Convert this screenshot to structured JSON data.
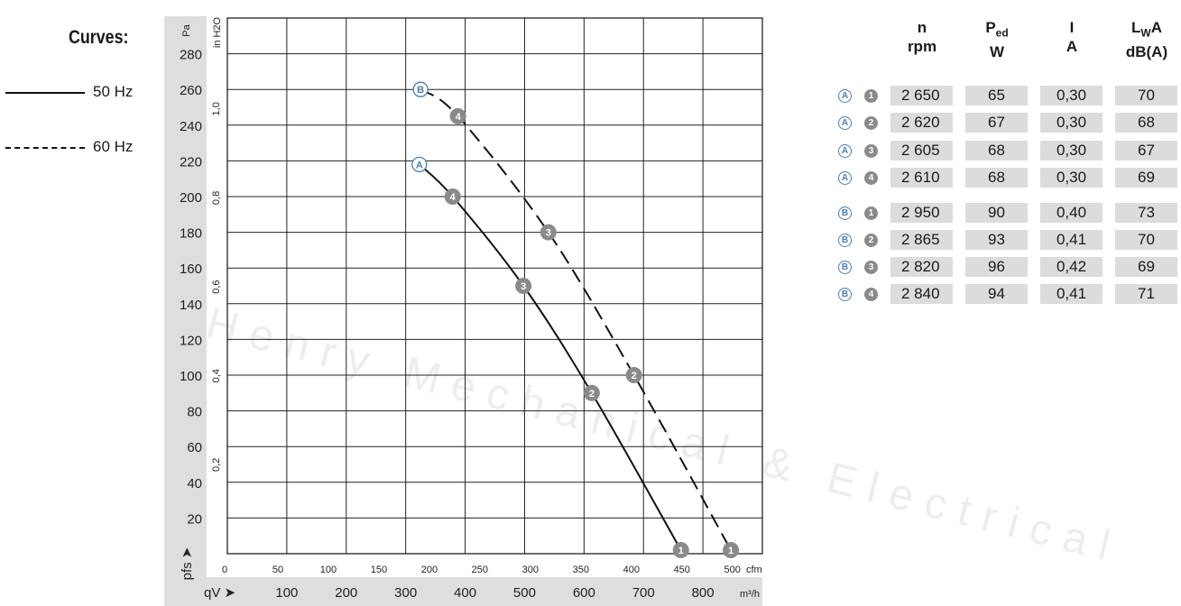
{
  "legend": {
    "title": "Curves:",
    "items": [
      {
        "label": "50 Hz",
        "style": "solid"
      },
      {
        "label": "60 Hz",
        "style": "dashed"
      }
    ]
  },
  "watermark": "Henry Mechanical & Electrical",
  "chart_data": {
    "type": "line",
    "ylabel": "Pa",
    "ylabel2": "in H2O",
    "ylabel_symbol": "pfs",
    "xlabel_symbol": "qV",
    "xunit": "m³/h",
    "xunit2": "cfm",
    "xlim": [
      0,
      900
    ],
    "ylim": [
      0,
      300
    ],
    "grid": true,
    "y_ticks": [
      20,
      40,
      60,
      80,
      100,
      120,
      140,
      160,
      180,
      200,
      220,
      240,
      260,
      280
    ],
    "y2_ticks": [
      "0,2",
      "0,4",
      "0,6",
      "0,8",
      "1,0"
    ],
    "y2_values": [
      0.2,
      0.4,
      0.6,
      0.8,
      1.0
    ],
    "x_ticks": [
      100,
      200,
      300,
      400,
      500,
      600,
      700,
      800
    ],
    "x2_ticks": [
      0,
      50,
      100,
      150,
      200,
      250,
      300,
      350,
      400,
      450,
      500
    ],
    "series": [
      {
        "name": "50 Hz",
        "curve": "A",
        "style": "solid",
        "points": [
          {
            "x": 323,
            "y": 218,
            "label": "A"
          },
          {
            "x": 379,
            "y": 200,
            "label": "4"
          },
          {
            "x": 498,
            "y": 150,
            "label": "3"
          },
          {
            "x": 613,
            "y": 90,
            "label": "2"
          },
          {
            "x": 763,
            "y": 2,
            "label": "1"
          }
        ]
      },
      {
        "name": "60 Hz",
        "curve": "B",
        "style": "dashed",
        "points": [
          {
            "x": 325,
            "y": 260,
            "label": "B"
          },
          {
            "x": 388,
            "y": 245,
            "label": "4"
          },
          {
            "x": 540,
            "y": 180,
            "label": "3"
          },
          {
            "x": 684,
            "y": 100,
            "label": "2"
          },
          {
            "x": 847,
            "y": 2,
            "label": "1"
          }
        ]
      }
    ]
  },
  "table": {
    "headers": [
      {
        "top": "n",
        "bottom": "rpm"
      },
      {
        "top": "P",
        "sub": "ed",
        "bottom": "W"
      },
      {
        "top": "I",
        "bottom": "A"
      },
      {
        "top": "L",
        "sub": "W",
        "top2": "A",
        "bottom": "dB(A)"
      }
    ],
    "rows": [
      {
        "curve": "A",
        "point": "1",
        "n": "2 650",
        "p": "65",
        "i": "0,30",
        "lwa": "70"
      },
      {
        "curve": "A",
        "point": "2",
        "n": "2 620",
        "p": "67",
        "i": "0,30",
        "lwa": "68"
      },
      {
        "curve": "A",
        "point": "3",
        "n": "2 605",
        "p": "68",
        "i": "0,30",
        "lwa": "67"
      },
      {
        "curve": "A",
        "point": "4",
        "n": "2 610",
        "p": "68",
        "i": "0,30",
        "lwa": "69"
      },
      {
        "curve": "B",
        "point": "1",
        "n": "2 950",
        "p": "90",
        "i": "0,40",
        "lwa": "73"
      },
      {
        "curve": "B",
        "point": "2",
        "n": "2 865",
        "p": "93",
        "i": "0,41",
        "lwa": "70"
      },
      {
        "curve": "B",
        "point": "3",
        "n": "2 820",
        "p": "96",
        "i": "0,42",
        "lwa": "69"
      },
      {
        "curve": "B",
        "point": "4",
        "n": "2 840",
        "p": "94",
        "i": "0,41",
        "lwa": "71"
      }
    ]
  }
}
